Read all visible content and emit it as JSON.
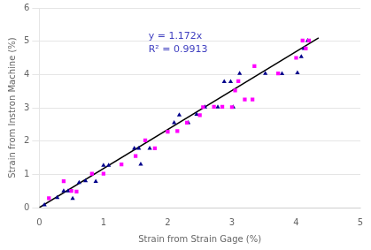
{
  "chart_data": {
    "type": "scatter",
    "xlabel": "Strain from Strain Gage (%)",
    "ylabel": "Strain from Instron Machine (%)",
    "xlim": [
      0,
      5
    ],
    "ylim": [
      0,
      6
    ],
    "xticks": [
      0,
      1,
      2,
      3,
      4,
      5
    ],
    "yticks": [
      0,
      1,
      2,
      3,
      4,
      5,
      6
    ],
    "grid": "y",
    "annotations": [
      {
        "text": "y = 1.172x",
        "color": "#4040C0"
      },
      {
        "text": "R² = 0.9913",
        "color": "#4040C0"
      }
    ],
    "series": [
      {
        "type": "line",
        "color": "#000000",
        "line_style": "solid",
        "x": [
          0,
          4.35
        ],
        "values": [
          0,
          5.0982
        ]
      },
      {
        "type": "scatter",
        "color": "#FF00FF",
        "marker": "square",
        "x": [
          0.15,
          0.38,
          0.5,
          0.58,
          0.82,
          1.0,
          1.28,
          1.5,
          1.65,
          1.8,
          2.0,
          2.15,
          2.3,
          2.5,
          2.55,
          2.72,
          2.85,
          3.0,
          3.05,
          3.1,
          3.2,
          3.32,
          3.35,
          3.72,
          4.0,
          4.1,
          4.15,
          4.2
        ],
        "values": [
          0.28,
          0.79,
          0.5,
          0.48,
          1.02,
          1.02,
          1.3,
          1.55,
          2.02,
          1.78,
          2.28,
          2.3,
          2.55,
          2.78,
          3.02,
          3.03,
          3.03,
          3.02,
          3.52,
          3.8,
          3.25,
          3.25,
          4.25,
          4.03,
          4.5,
          5.02,
          4.78,
          5.02
        ]
      },
      {
        "type": "scatter",
        "color": "#00008B",
        "marker": "triangle",
        "x": [
          0.08,
          0.28,
          0.38,
          0.45,
          0.52,
          0.62,
          0.72,
          0.88,
          1.0,
          1.08,
          1.48,
          1.55,
          1.58,
          1.72,
          2.1,
          2.18,
          2.32,
          2.45,
          2.58,
          2.78,
          2.88,
          2.98,
          3.02,
          3.12,
          3.52,
          3.78,
          4.02,
          4.08,
          4.12,
          4.18
        ],
        "values": [
          0.08,
          0.3,
          0.5,
          0.5,
          0.27,
          0.75,
          0.8,
          0.78,
          1.27,
          1.27,
          1.78,
          1.78,
          1.3,
          1.78,
          2.55,
          2.78,
          2.55,
          2.8,
          3.02,
          3.02,
          3.78,
          3.78,
          3.02,
          4.03,
          4.03,
          4.02,
          4.05,
          4.53,
          4.78,
          5.02
        ]
      }
    ]
  }
}
